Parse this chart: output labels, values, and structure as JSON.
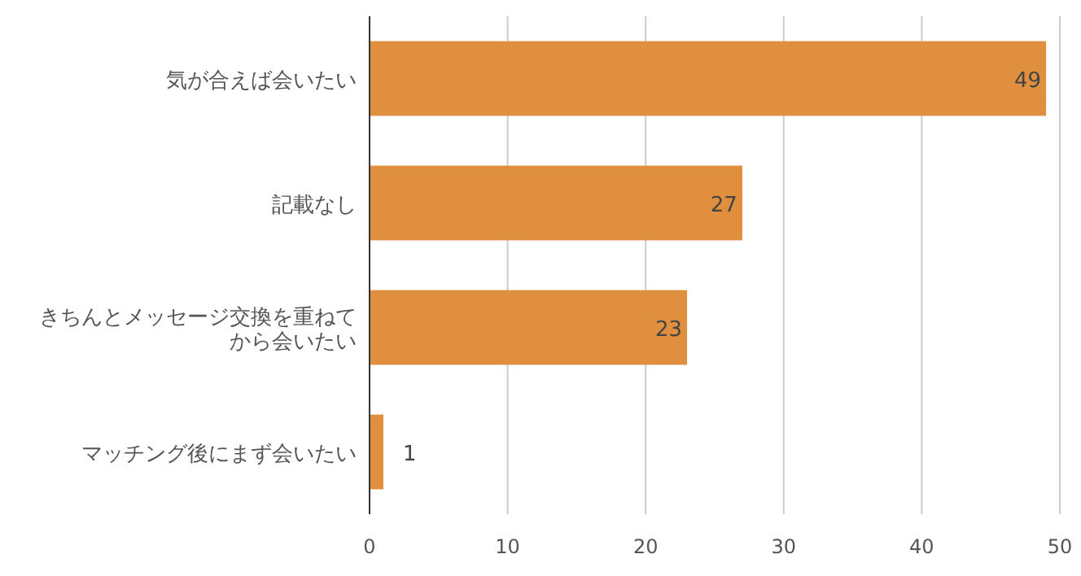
{
  "chart_data": {
    "type": "bar",
    "orientation": "horizontal",
    "categories": [
      "気が合えば会いたい",
      "記載なし",
      "きちんとメッセージ交換を重ねてから会いたい",
      "マッチング後にまず会いたい"
    ],
    "values": [
      49,
      27,
      23,
      1
    ],
    "color": "#e08f3e",
    "xlim": [
      0,
      50
    ],
    "xticks": [
      0,
      10,
      20,
      30,
      40,
      50
    ],
    "grid": "x",
    "data_labels": true
  }
}
